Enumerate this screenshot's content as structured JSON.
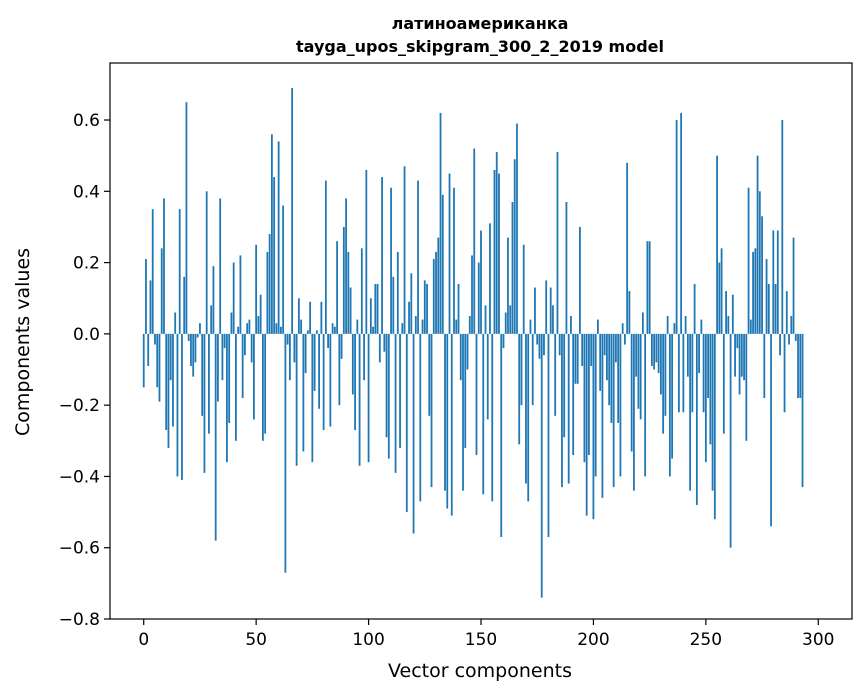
{
  "chart_data": {
    "type": "bar",
    "title": "латиноамериканка",
    "subtitle": "tayga_upos_skipgram_300_2_2019 model",
    "xlabel": "Vector components",
    "ylabel": "Components values",
    "xlim": [
      -15,
      315
    ],
    "ylim": [
      -0.8,
      0.76
    ],
    "xticks": [
      0,
      50,
      100,
      150,
      200,
      250,
      300
    ],
    "yticks": [
      -0.8,
      -0.6,
      -0.4,
      -0.2,
      0.0,
      0.2,
      0.4,
      0.6
    ],
    "ytick_labels": [
      "−0.8",
      "−0.6",
      "−0.4",
      "−0.2",
      "0.0",
      "0.2",
      "0.4",
      "0.6"
    ],
    "bar_color": "#1f77b4",
    "grid": false,
    "legend": "none",
    "series": [
      {
        "values": [
          -0.15,
          0.21,
          -0.09,
          0.15,
          0.35,
          -0.03,
          -0.15,
          -0.19,
          0.24,
          0.38,
          -0.27,
          -0.32,
          -0.13,
          -0.26,
          0.06,
          -0.4,
          0.35,
          -0.41,
          0.16,
          0.65,
          -0.02,
          -0.09,
          -0.12,
          -0.08,
          -0.01,
          0.03,
          -0.23,
          -0.39,
          0.4,
          -0.28,
          0.08,
          0.19,
          -0.58,
          -0.19,
          0.38,
          -0.13,
          -0.04,
          -0.36,
          -0.25,
          0.06,
          0.2,
          -0.3,
          0.02,
          0.22,
          -0.18,
          -0.06,
          0.03,
          0.04,
          -0.08,
          -0.24,
          0.25,
          0.05,
          0.11,
          -0.3,
          -0.28,
          0.23,
          0.28,
          0.56,
          0.44,
          0.03,
          0.54,
          0.02,
          0.36,
          -0.67,
          -0.03,
          -0.13,
          0.69,
          -0.08,
          -0.37,
          0.1,
          0.04,
          -0.33,
          -0.11,
          0.01,
          0.09,
          -0.36,
          -0.16,
          0.01,
          -0.21,
          0.09,
          -0.27,
          0.43,
          -0.04,
          -0.26,
          0.03,
          0.02,
          0.26,
          -0.2,
          -0.07,
          0.3,
          0.38,
          0.23,
          0.13,
          -0.17,
          -0.27,
          0.04,
          -0.37,
          0.24,
          -0.13,
          0.46,
          -0.36,
          0.1,
          0.02,
          0.14,
          0.14,
          -0.08,
          0.44,
          -0.05,
          -0.29,
          -0.35,
          0.41,
          0.16,
          -0.39,
          0.23,
          -0.32,
          0.03,
          0.47,
          -0.5,
          0.09,
          0.17,
          -0.56,
          0.05,
          0.43,
          -0.47,
          0.04,
          0.15,
          0.14,
          -0.23,
          -0.43,
          0.21,
          0.23,
          0.27,
          0.62,
          0.39,
          -0.44,
          -0.49,
          0.45,
          -0.51,
          0.41,
          0.04,
          0.14,
          -0.13,
          -0.44,
          -0.32,
          -0.1,
          0.05,
          0.22,
          0.52,
          -0.34,
          0.2,
          0.29,
          -0.45,
          0.08,
          -0.24,
          0.31,
          -0.47,
          0.46,
          0.51,
          0.45,
          -0.57,
          -0.04,
          0.06,
          0.27,
          0.08,
          0.37,
          0.49,
          0.59,
          -0.31,
          -0.2,
          0.25,
          -0.42,
          -0.47,
          0.04,
          -0.2,
          0.13,
          -0.03,
          -0.07,
          -0.74,
          -0.06,
          0.15,
          -0.57,
          0.13,
          0.08,
          -0.23,
          0.51,
          -0.06,
          -0.43,
          -0.29,
          0.37,
          -0.42,
          0.05,
          -0.34,
          -0.14,
          -0.14,
          0.3,
          -0.09,
          -0.36,
          -0.51,
          -0.34,
          -0.09,
          -0.52,
          -0.4,
          0.04,
          -0.16,
          -0.46,
          -0.06,
          -0.13,
          -0.2,
          -0.25,
          -0.43,
          -0.08,
          -0.25,
          -0.4,
          0.03,
          -0.03,
          0.48,
          0.12,
          -0.33,
          -0.44,
          -0.12,
          -0.21,
          -0.24,
          0.06,
          -0.4,
          0.26,
          0.26,
          -0.09,
          -0.1,
          -0.08,
          -0.11,
          -0.17,
          -0.28,
          -0.23,
          0.05,
          -0.4,
          -0.35,
          0.03,
          0.6,
          -0.22,
          0.62,
          -0.22,
          0.05,
          -0.12,
          -0.44,
          -0.22,
          0.14,
          -0.48,
          -0.11,
          0.04,
          -0.22,
          -0.36,
          -0.18,
          -0.31,
          -0.44,
          -0.52,
          0.5,
          0.2,
          0.24,
          -0.28,
          0.12,
          0.05,
          -0.6,
          0.11,
          -0.12,
          -0.04,
          -0.17,
          -0.12,
          -0.13,
          -0.3,
          0.41,
          0.04,
          0.23,
          0.24,
          0.5,
          0.4,
          0.33,
          -0.18,
          0.21,
          0.14,
          -0.54,
          0.29,
          0.14,
          0.29,
          -0.06,
          0.6,
          -0.22,
          0.12,
          -0.03,
          0.05,
          0.27,
          -0.02,
          -0.18,
          -0.18,
          -0.43
        ]
      }
    ]
  }
}
